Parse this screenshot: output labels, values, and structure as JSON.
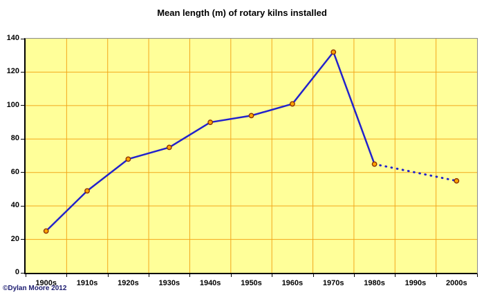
{
  "title": "Mean length (m) of rotary kilns installed",
  "footer": {
    "copyright": "©Dylan Moore 2012"
  },
  "colors": {
    "plot_bg": "#FFFF99",
    "grid": "#F2A71B",
    "line": "#2222CC",
    "marker_fill": "#FFA500",
    "marker_stroke": "#8B2E00",
    "axis": "#000000",
    "frame_border": "#8A8A8A",
    "copyright_text": "#1B1B70"
  },
  "chart_data": {
    "type": "line",
    "title": "Mean length (m) of rotary kilns installed",
    "categories": [
      "1900s",
      "1910s",
      "1920s",
      "1930s",
      "1940s",
      "1950s",
      "1960s",
      "1970s",
      "1980s",
      "1990s",
      "2000s"
    ],
    "series": [
      {
        "name": "Mean length (m) of rotary kilns installed",
        "values": [
          25,
          49,
          68,
          75,
          90,
          94,
          101,
          132,
          65,
          60,
          55
        ],
        "solid_until_index": 8,
        "dotted_from_index": 8,
        "marker_skip_indices": [
          9
        ]
      }
    ],
    "xlabel": "",
    "ylabel": "",
    "ylim": [
      0,
      140
    ],
    "ytick_interval": 20,
    "grid": true,
    "legend_position": "none"
  }
}
